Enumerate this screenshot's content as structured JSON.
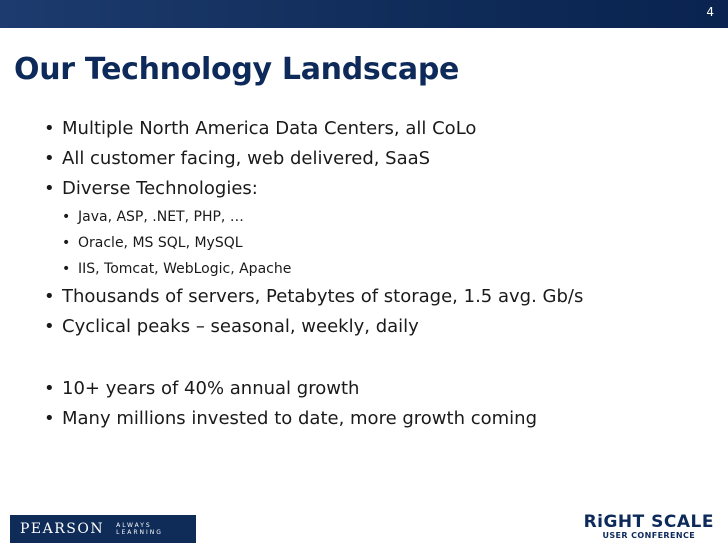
{
  "slide_number": "4",
  "title": "Our Technology Landscape",
  "bullets_top": [
    "Multiple North America Data Centers, all CoLo",
    "All customer facing, web delivered, SaaS",
    "Diverse Technologies:"
  ],
  "sub_bullets": [
    "Java, ASP, .NET, PHP, …",
    "Oracle, MS SQL, MySQL",
    "IIS, Tomcat, WebLogic, Apache"
  ],
  "bullets_mid": [
    "Thousands of servers, Petabytes of storage, 1.5 avg. Gb/s",
    "Cyclical peaks – seasonal, weekly, daily"
  ],
  "bullets_bottom": [
    "10+ years of 40% annual growth",
    "Many millions invested to date, more growth coming"
  ],
  "footer": {
    "pearson_brand": "PEARSON",
    "pearson_tagline": "ALWAYS LEARNING",
    "rightscale_logo": "RiGHT SCALE",
    "rightscale_sub": "USER CONFERENCE"
  },
  "colors": {
    "top_bar": "#0f2b58",
    "title": "#0e2a5a"
  }
}
